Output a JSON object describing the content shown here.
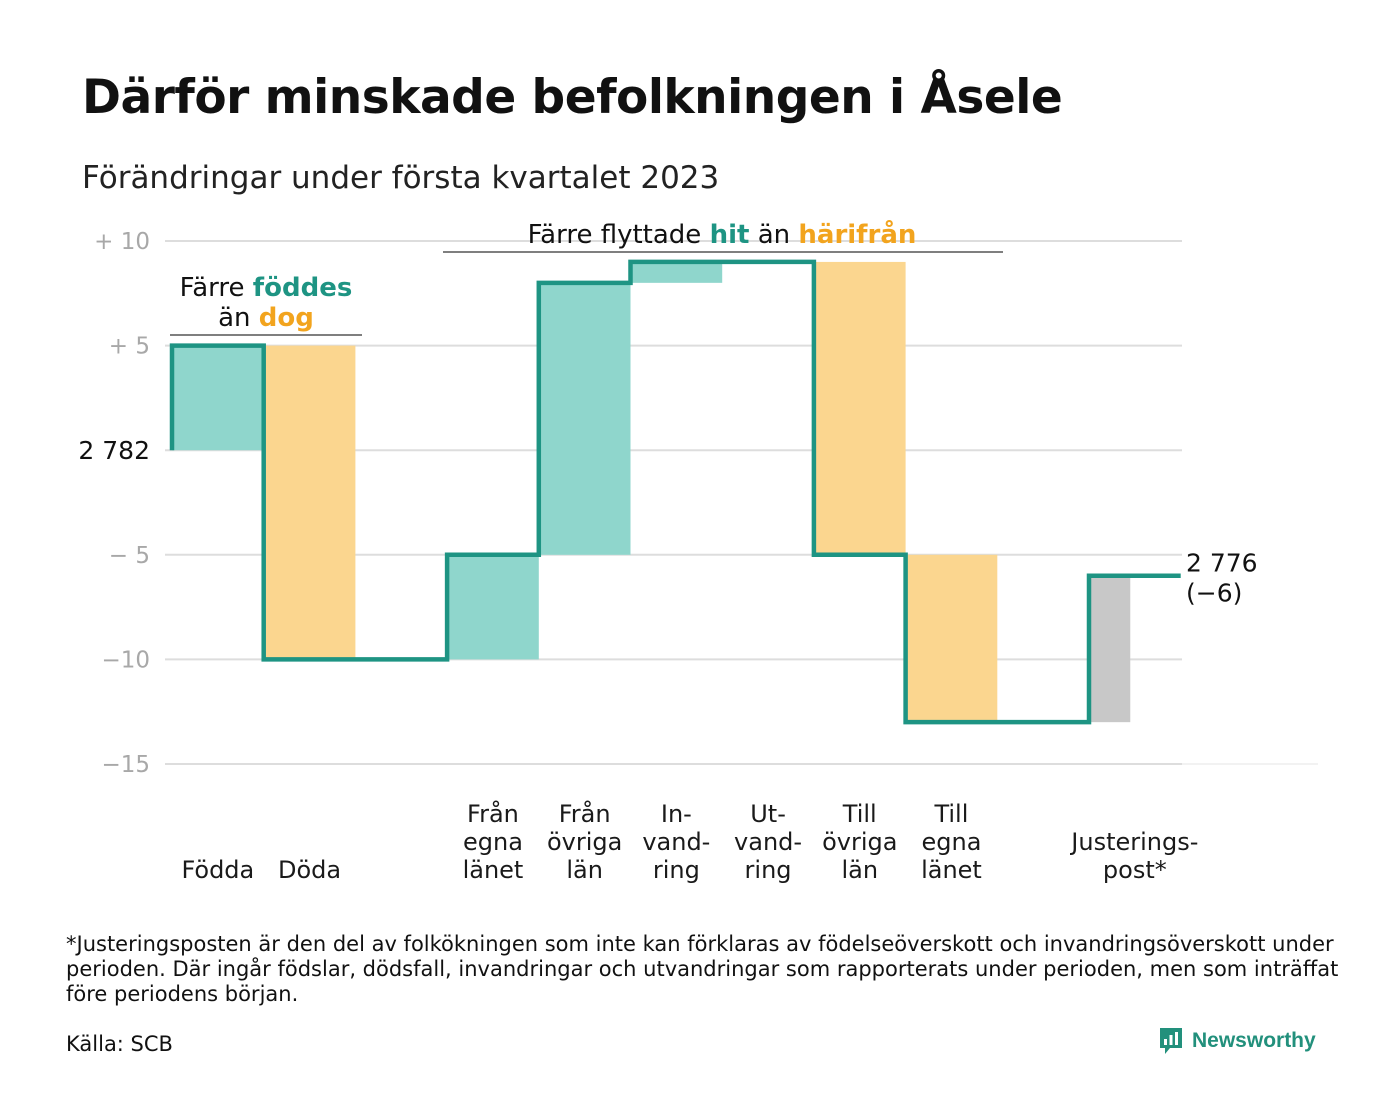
{
  "title": "Därför minskade befolkningen i Åsele",
  "subtitle": "Förändringar under första kvartalet 2023",
  "footnote": "*Justeringsposten är den del av folkökningen som inte kan förklaras av födelseöverskott och invandringsöverskott under perioden. Där ingår födslar, dödsfall, invandringar och utvandringar som rapporterats under perioden, men som inträffat före periodens början.",
  "source": "Källa: SCB",
  "brand": "Newsworthy",
  "colors": {
    "increase": "#8fd6cc",
    "decrease": "#fbd68f",
    "adjustment": "#c8c8c8",
    "line": "#1e9483",
    "teal_text": "#1e9483",
    "orange_text": "#f2a41e",
    "grid": "#dddddd",
    "tick": "#a8a8a8"
  },
  "chart_data": {
    "type": "waterfall",
    "start_label": "2 782",
    "end_label": "2 776",
    "end_change_label": "(−6)",
    "yticks": [
      10,
      5,
      0,
      -5,
      -10,
      -15
    ],
    "ytick_labels": [
      "+ 10",
      "+ 5",
      "",
      "− 5",
      "−10",
      "−15"
    ],
    "ylim": [
      -15,
      10
    ],
    "steps": [
      {
        "label": [
          "Födda"
        ],
        "value": 5,
        "kind": "increase"
      },
      {
        "label": [
          "Döda"
        ],
        "value": -15,
        "kind": "decrease"
      },
      {
        "label": [],
        "value": 0,
        "kind": "none"
      },
      {
        "label": [
          "Från",
          "egna",
          "länet"
        ],
        "value": 5,
        "kind": "increase"
      },
      {
        "label": [
          "Från",
          "övriga",
          "län"
        ],
        "value": 13,
        "kind": "increase"
      },
      {
        "label": [
          "In-",
          "vand-",
          "ring"
        ],
        "value": 1,
        "kind": "increase"
      },
      {
        "label": [
          "Ut-",
          "vand-",
          "ring"
        ],
        "value": 0,
        "kind": "decrease"
      },
      {
        "label": [
          "Till",
          "övriga",
          "län"
        ],
        "value": -14,
        "kind": "decrease"
      },
      {
        "label": [
          "Till",
          "egna",
          "länet"
        ],
        "value": -8,
        "kind": "decrease"
      },
      {
        "label": [],
        "value": 0,
        "kind": "none"
      },
      {
        "label": [
          "Justerings-",
          "post*"
        ],
        "value": 7,
        "kind": "adjustment"
      }
    ],
    "annotations": [
      {
        "lines": [
          [
            {
              "t": "Färre ",
              "c": "plain"
            },
            {
              "t": "föddes",
              "c": "teal"
            }
          ],
          [
            {
              "t": "än ",
              "c": "plain"
            },
            {
              "t": "dog",
              "c": "orange"
            }
          ]
        ]
      },
      {
        "lines": [
          [
            {
              "t": "Färre flyttade ",
              "c": "plain"
            },
            {
              "t": "hit",
              "c": "teal"
            },
            {
              "t": " än ",
              "c": "plain"
            },
            {
              "t": "härifrån",
              "c": "orange"
            }
          ]
        ]
      }
    ]
  }
}
